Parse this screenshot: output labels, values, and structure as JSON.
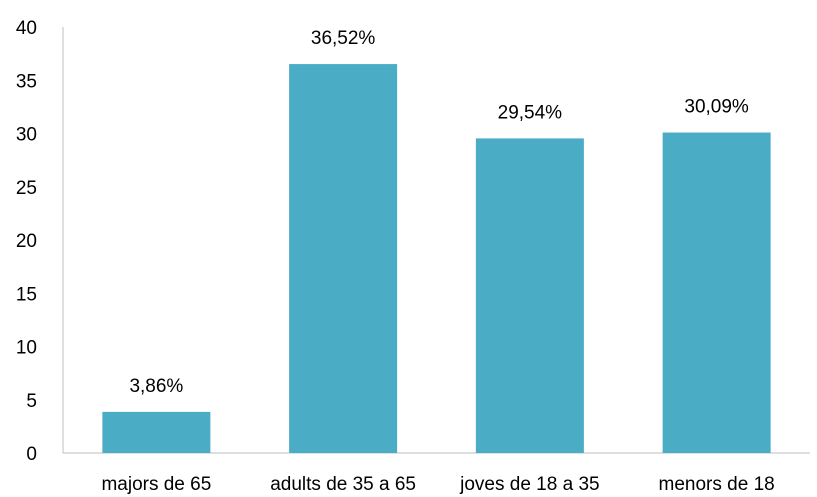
{
  "chart_data": {
    "type": "bar",
    "categories": [
      "majors de 65",
      "adults de 35 a 65",
      "joves de 18 a 35",
      "menors de 18"
    ],
    "values": [
      3.86,
      36.52,
      29.54,
      30.09
    ],
    "data_labels": [
      "3,86%",
      "36,52%",
      "29,54%",
      "30,09%"
    ],
    "ylim": [
      0,
      40
    ],
    "yticks": [
      0,
      5,
      10,
      15,
      20,
      25,
      30,
      35,
      40
    ],
    "grid": false,
    "legend": "none",
    "bar_color": "#4bacc6"
  }
}
